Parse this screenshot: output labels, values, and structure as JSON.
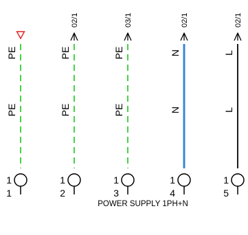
{
  "caption": "POWER SUPPLY 1PH+N",
  "colors": {
    "pe": "#33cc33",
    "n": "#3a86d4",
    "l": "#000000",
    "marker_open": "#e02020",
    "ink": "#000000"
  },
  "wires": [
    {
      "id": "pe1",
      "type": "pe",
      "marker": "open-triangle",
      "ref": "",
      "labels": [
        "PE",
        "PE"
      ],
      "terminal_upper": "1",
      "terminal_lower": "1"
    },
    {
      "id": "pe2",
      "type": "pe",
      "marker": "arrow",
      "ref": "02/1",
      "labels": [
        "PE",
        "PE"
      ],
      "terminal_upper": "1",
      "terminal_lower": "2"
    },
    {
      "id": "pe3",
      "type": "pe",
      "marker": "arrow",
      "ref": "03/1",
      "labels": [
        "PE",
        "PE"
      ],
      "terminal_upper": "1",
      "terminal_lower": "3"
    },
    {
      "id": "n",
      "type": "n",
      "marker": "arrow",
      "ref": "02/1",
      "labels": [
        "N",
        "N"
      ],
      "terminal_upper": "1",
      "terminal_lower": "4"
    },
    {
      "id": "l",
      "type": "l",
      "marker": "arrow",
      "ref": "02/1",
      "labels": [
        "L",
        "L"
      ],
      "terminal_upper": "1",
      "terminal_lower": "5"
    }
  ]
}
